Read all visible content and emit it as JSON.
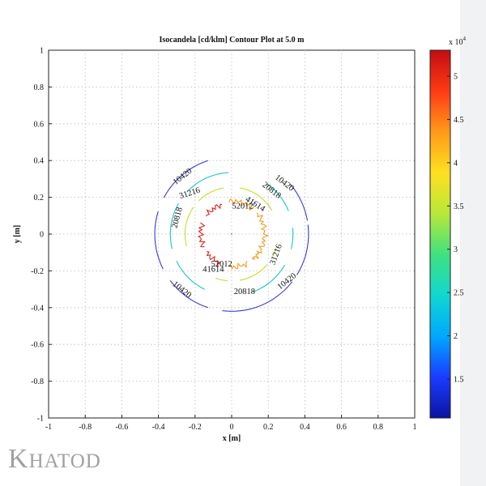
{
  "chart_data": {
    "type": "contour",
    "title": "Isocandela [cd/klm] Contour Plot at 5.0 m",
    "xlabel": "x [m]",
    "ylabel": "y [m]",
    "xlim": [
      -1,
      1
    ],
    "ylim": [
      -1,
      1
    ],
    "xticks": [
      "-1",
      "-0.8",
      "-0.6",
      "-0.4",
      "-0.2",
      "0",
      "0.2",
      "0.4",
      "0.6",
      "0.8",
      "1"
    ],
    "yticks": [
      "1",
      "0.8",
      "0.6",
      "0.4",
      "0.2",
      "0",
      "-0.2",
      "-0.4",
      "-0.6",
      "-0.8",
      "-1"
    ],
    "grid": true,
    "levels": [
      {
        "value": 10420,
        "color": "#3a3ad6",
        "radius": 0.42
      },
      {
        "value": 20818,
        "color": "#18c8c0",
        "radius": 0.335
      },
      {
        "value": 31216,
        "color": "#c8dc28",
        "radius": 0.255
      },
      {
        "value": 41614,
        "color": "#f29a1c",
        "radius": 0.18
      },
      {
        "value": 52012,
        "color": "#e0201c",
        "radius": 0.17
      }
    ],
    "contour_labels": [
      {
        "text": "10420",
        "x": -0.27,
        "y": 0.315,
        "angle": -38
      },
      {
        "text": "10420",
        "x": 0.29,
        "y": 0.28,
        "angle": 38
      },
      {
        "text": "10420",
        "x": -0.27,
        "y": -0.3,
        "angle": 38
      },
      {
        "text": "10420",
        "x": 0.3,
        "y": -0.255,
        "angle": -38
      },
      {
        "text": "31216",
        "x": -0.23,
        "y": 0.225,
        "angle": -18
      },
      {
        "text": "20818",
        "x": 0.22,
        "y": 0.24,
        "angle": 38
      },
      {
        "text": "41614",
        "x": 0.13,
        "y": 0.165,
        "angle": 32
      },
      {
        "text": "52012",
        "x": 0.06,
        "y": 0.155,
        "angle": 0
      },
      {
        "text": "20818",
        "x": -0.3,
        "y": 0.09,
        "angle": -75
      },
      {
        "text": "31216",
        "x": 0.24,
        "y": -0.11,
        "angle": -70
      },
      {
        "text": "52012",
        "x": -0.055,
        "y": -0.16,
        "angle": 0
      },
      {
        "text": "41614",
        "x": -0.1,
        "y": -0.19,
        "angle": 0
      },
      {
        "text": "20818",
        "x": 0.07,
        "y": -0.31,
        "angle": 0
      }
    ],
    "colorbar": {
      "multiplier_label": "x 10",
      "multiplier_exp": "4",
      "min": 1.05,
      "max": 5.3,
      "ticks": [
        "1.5",
        "2",
        "2.5",
        "3",
        "3.5",
        "4",
        "4.5",
        "5"
      ],
      "tick_values": [
        1.5,
        2,
        2.5,
        3,
        3.5,
        4,
        4.5,
        5
      ],
      "colors": [
        "#0b14a0",
        "#1a3cff",
        "#00a8ff",
        "#10d8d0",
        "#40e080",
        "#b8e838",
        "#ffe020",
        "#ff9a18",
        "#ff3a14",
        "#c40c12"
      ]
    }
  },
  "brand": {
    "logo_initial": "K",
    "logo_rest": "HATOD"
  }
}
